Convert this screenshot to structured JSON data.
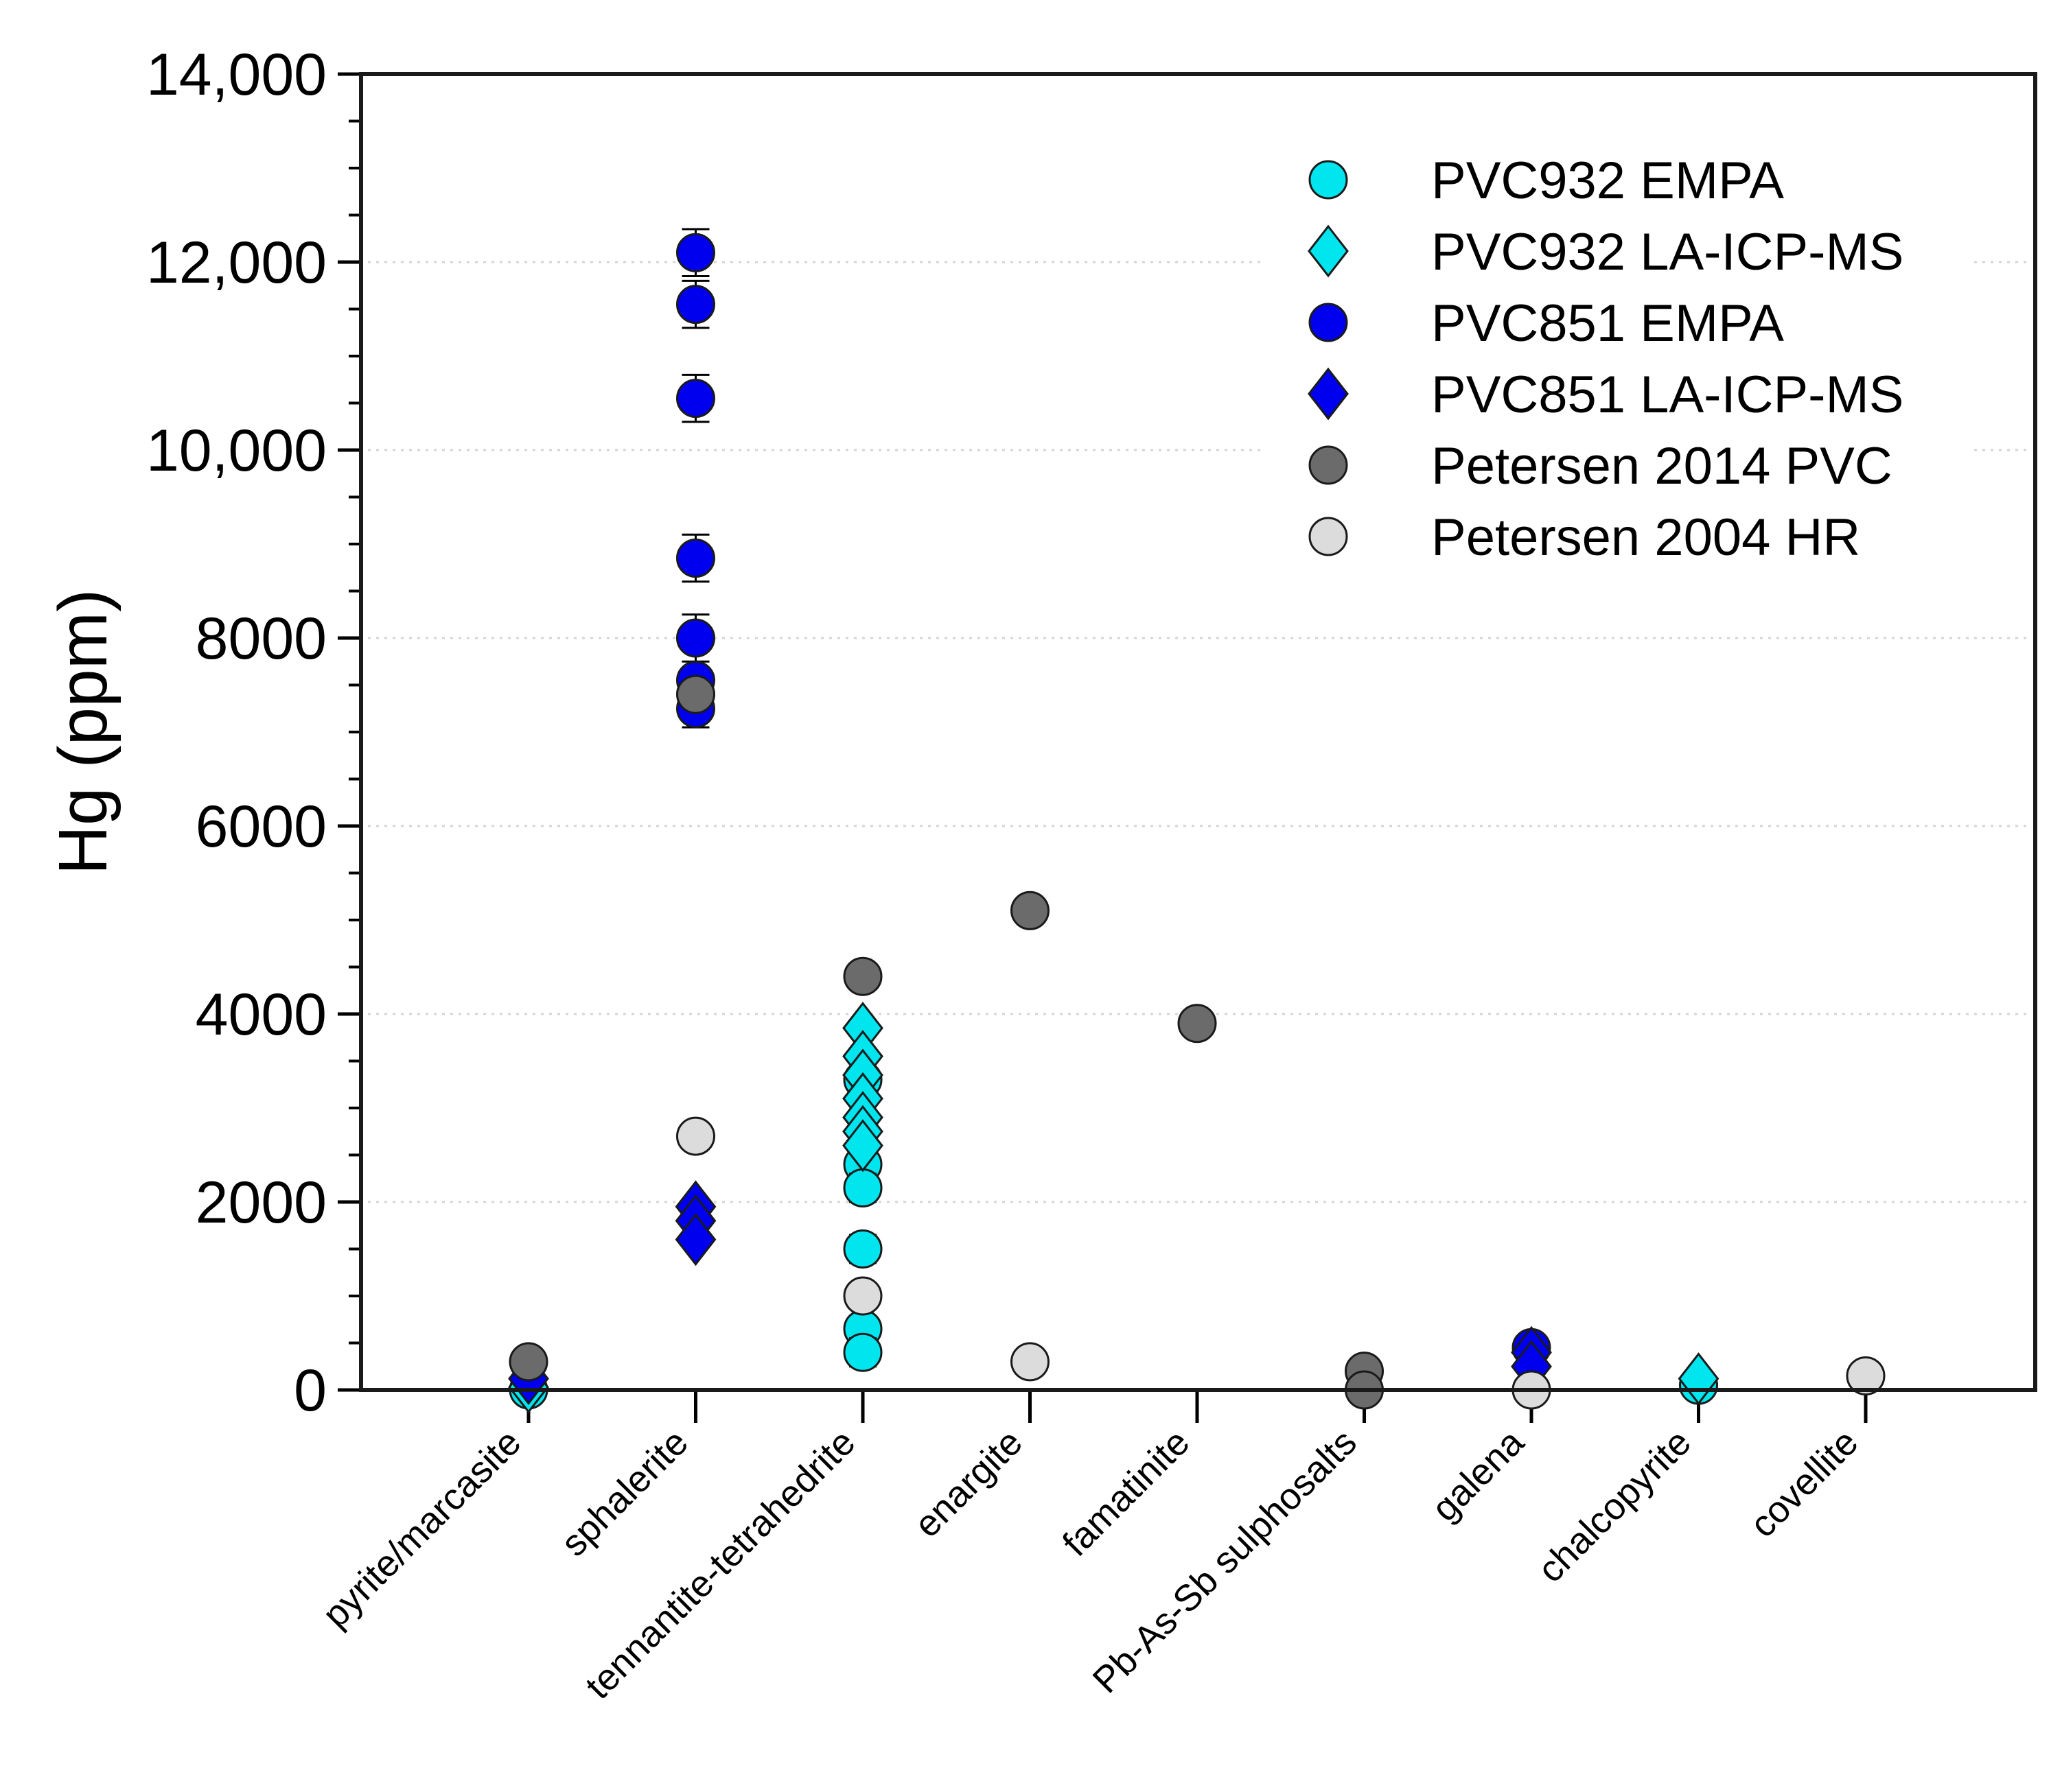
{
  "chart_data": {
    "type": "scatter",
    "title": "",
    "xlabel": "",
    "ylabel": "Hg (ppm)",
    "ylim": [
      0,
      14000
    ],
    "grid": true,
    "legend_position": "top-right",
    "y_ticks": [
      {
        "value": 0,
        "label": "0"
      },
      {
        "value": 2000,
        "label": "2000"
      },
      {
        "value": 4000,
        "label": "4000"
      },
      {
        "value": 6000,
        "label": "6000"
      },
      {
        "value": 8000,
        "label": "8000"
      },
      {
        "value": 10000,
        "label": "10,000"
      },
      {
        "value": 12000,
        "label": "12,000"
      },
      {
        "value": 14000,
        "label": "14,000"
      }
    ],
    "categories": [
      "pyrite/marcasite",
      "sphalerite",
      "tennantite-tetrahedrite",
      "enargite",
      "famatinite",
      "Pb-As-Sb sulphosalts",
      "galena",
      "chalcopyrite",
      "covellite"
    ],
    "series": [
      {
        "name": "PVC932 EMPA",
        "marker": "circle",
        "color": "#00e5ee",
        "points": [
          {
            "category": "pyrite/marcasite",
            "value": 0
          },
          {
            "category": "tennantite-tetrahedrite",
            "value": 3300
          },
          {
            "category": "tennantite-tetrahedrite",
            "value": 2400,
            "error": 150
          },
          {
            "category": "tennantite-tetrahedrite",
            "value": 2150,
            "error": 150
          },
          {
            "category": "tennantite-tetrahedrite",
            "value": 1500,
            "error": 150
          },
          {
            "category": "tennantite-tetrahedrite",
            "value": 650
          },
          {
            "category": "tennantite-tetrahedrite",
            "value": 400,
            "error": 150
          },
          {
            "category": "chalcopyrite",
            "value": 50
          }
        ]
      },
      {
        "name": "PVC932 LA-ICP-MS",
        "marker": "diamond",
        "color": "#00e5ee",
        "points": [
          {
            "category": "pyrite/marcasite",
            "value": 30
          },
          {
            "category": "tennantite-tetrahedrite",
            "value": 3850
          },
          {
            "category": "tennantite-tetrahedrite",
            "value": 3550
          },
          {
            "category": "tennantite-tetrahedrite",
            "value": 3350
          },
          {
            "category": "tennantite-tetrahedrite",
            "value": 3100
          },
          {
            "category": "tennantite-tetrahedrite",
            "value": 2900
          },
          {
            "category": "tennantite-tetrahedrite",
            "value": 2750
          },
          {
            "category": "tennantite-tetrahedrite",
            "value": 2600
          },
          {
            "category": "chalcopyrite",
            "value": 120
          }
        ]
      },
      {
        "name": "PVC851 EMPA",
        "marker": "circle",
        "color": "#0000ee",
        "points": [
          {
            "category": "sphalerite",
            "value": 12100,
            "error": 250
          },
          {
            "category": "sphalerite",
            "value": 11550,
            "error": 250
          },
          {
            "category": "sphalerite",
            "value": 10550,
            "error": 250
          },
          {
            "category": "sphalerite",
            "value": 8850,
            "error": 250
          },
          {
            "category": "sphalerite",
            "value": 8000,
            "error": 250
          },
          {
            "category": "sphalerite",
            "value": 7550
          },
          {
            "category": "sphalerite",
            "value": 7250,
            "error": 200
          },
          {
            "category": "galena",
            "value": 450
          }
        ]
      },
      {
        "name": "PVC851 LA-ICP-MS",
        "marker": "diamond",
        "color": "#0000ee",
        "points": [
          {
            "category": "pyrite/marcasite",
            "value": 120
          },
          {
            "category": "sphalerite",
            "value": 1950
          },
          {
            "category": "sphalerite",
            "value": 1800
          },
          {
            "category": "sphalerite",
            "value": 1600
          },
          {
            "category": "galena",
            "value": 400
          },
          {
            "category": "galena",
            "value": 250
          }
        ]
      },
      {
        "name": "Petersen 2014 PVC",
        "marker": "circle",
        "color": "#6b6b6b",
        "points": [
          {
            "category": "pyrite/marcasite",
            "value": 300
          },
          {
            "category": "sphalerite",
            "value": 7400
          },
          {
            "category": "tennantite-tetrahedrite",
            "value": 4400
          },
          {
            "category": "enargite",
            "value": 5100
          },
          {
            "category": "famatinite",
            "value": 3900
          },
          {
            "category": "Pb-As-Sb sulphosalts",
            "value": 200
          },
          {
            "category": "Pb-As-Sb sulphosalts",
            "value": 0
          }
        ]
      },
      {
        "name": "Petersen 2004 HR",
        "marker": "circle",
        "color": "#dcdcdc",
        "points": [
          {
            "category": "sphalerite",
            "value": 2700
          },
          {
            "category": "tennantite-tetrahedrite",
            "value": 1000
          },
          {
            "category": "enargite",
            "value": 300
          },
          {
            "category": "galena",
            "value": 0
          },
          {
            "category": "covellite",
            "value": 150
          }
        ]
      }
    ]
  }
}
